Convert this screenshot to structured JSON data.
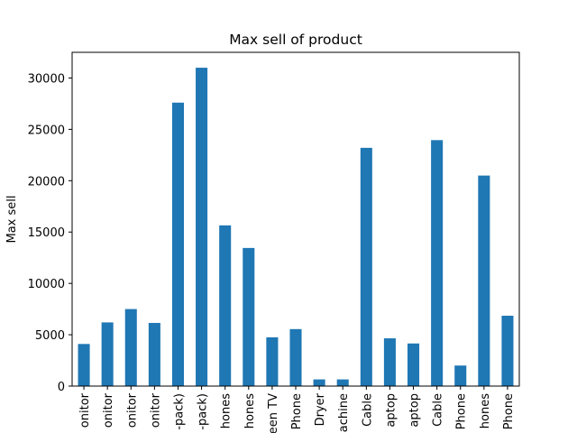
{
  "chart_data": {
    "type": "bar",
    "title": "Max sell of product",
    "xlabel": "",
    "ylabel": "Max sell",
    "ylim": [
      0,
      32500
    ],
    "yticks": [
      0,
      5000,
      10000,
      15000,
      20000,
      25000,
      30000
    ],
    "grid": false,
    "legend": "none",
    "bar_color": "#1f77b4",
    "categories": [
      "onitor",
      "onitor",
      "onitor",
      "onitor",
      "-pack)",
      "-pack)",
      "hones",
      "hones",
      "een TV",
      "Phone",
      "Dryer",
      "achine",
      "Cable",
      "aptop",
      "aptop",
      "Cable",
      "Phone",
      "hones",
      "Phone"
    ],
    "values": [
      4100,
      6200,
      7500,
      6150,
      27600,
      31000,
      15650,
      13450,
      4750,
      5550,
      650,
      650,
      23200,
      4650,
      4150,
      23950,
      2000,
      20500,
      6850
    ]
  }
}
